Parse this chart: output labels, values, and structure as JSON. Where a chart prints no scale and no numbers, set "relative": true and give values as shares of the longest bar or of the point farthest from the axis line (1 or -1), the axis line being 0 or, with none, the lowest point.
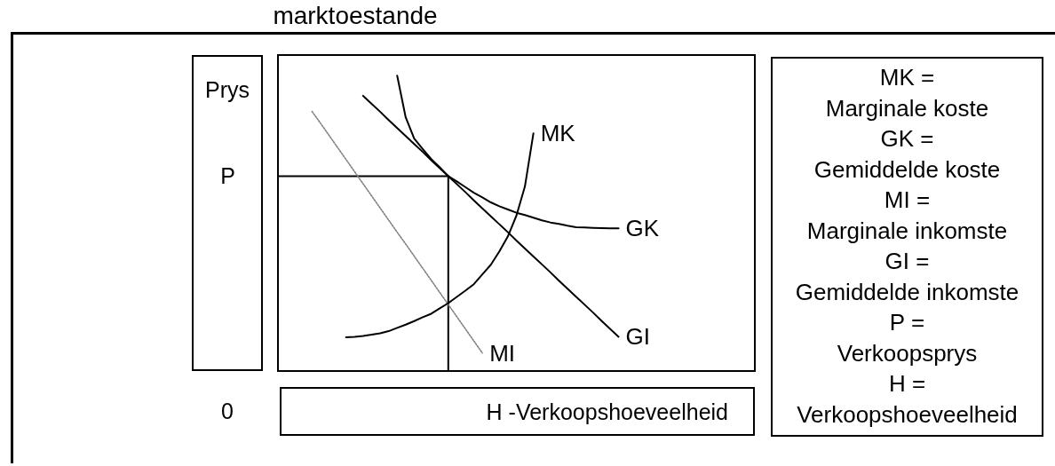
{
  "chart_data": {
    "type": "line",
    "title": "marktoestande",
    "xlabel": "H -Verkoopshoeveelheid",
    "ylabel": "Prys",
    "relative": true,
    "marker": "none",
    "categories": [
      null,
      null,
      null,
      null,
      null,
      null,
      null,
      null,
      null,
      null,
      null,
      null,
      null,
      null,
      null,
      null,
      null,
      null,
      null,
      null,
      null,
      null,
      null,
      null,
      null,
      null,
      null,
      null,
      null,
      null,
      null,
      null,
      null,
      null,
      null,
      null,
      null,
      null,
      null,
      null,
      null,
      null,
      null,
      null,
      null,
      null,
      null,
      null,
      null,
      null,
      null,
      null,
      null,
      null,
      null,
      null,
      null
    ],
    "series": [
      {
        "type": "step",
        "name": "P",
        "color": "#000000",
        "values": [
          0.66,
          0.66,
          0.66,
          0.66,
          0.66,
          0.66,
          0.66,
          0.66,
          0.66,
          0.66,
          0.66,
          0.66,
          0.66,
          0.66,
          0.66,
          0.66,
          0.66,
          0.66,
          0.66,
          0.66,
          0.66,
          0,
          null,
          null,
          null,
          null,
          null,
          null,
          null,
          null,
          null,
          null,
          null,
          null,
          null,
          null,
          null,
          null,
          null,
          null,
          null,
          null,
          null,
          null,
          null,
          null,
          null,
          null,
          null,
          null,
          null,
          null,
          null,
          null,
          null,
          null,
          null
        ]
      },
      {
        "name": "MI",
        "color": "#808080",
        "line_style": "dotted",
        "values": [
          null,
          null,
          null,
          null,
          0.879,
          0.839,
          0.798,
          0.757,
          0.716,
          0.675,
          0.634,
          0.593,
          0.552,
          0.511,
          0.47,
          0.43,
          0.389,
          0.348,
          0.307,
          0.266,
          0.225,
          0.184,
          0.143,
          0.102,
          0.061,
          null,
          null,
          null,
          null,
          null,
          null,
          null,
          null,
          null,
          null,
          null,
          null,
          null,
          null,
          null,
          null,
          null,
          null,
          null,
          null,
          null,
          null,
          null,
          null,
          null,
          null,
          null,
          null,
          null,
          null,
          null,
          null
        ]
      },
      {
        "name": "MK",
        "color": "#000000",
        "values": [
          null,
          null,
          null,
          null,
          null,
          null,
          null,
          null,
          0.114,
          0.116,
          0.119,
          0.123,
          0.128,
          0.135,
          0.146,
          0.157,
          0.169,
          0.182,
          0.194,
          0.212,
          0.23,
          0.251,
          0.272,
          0.294,
          0.327,
          0.36,
          0.405,
          0.456,
          0.526,
          0.625,
          0.805,
          null,
          null,
          null,
          null,
          null,
          null,
          null,
          null,
          null,
          null,
          null,
          null,
          null,
          null,
          null,
          null,
          null,
          null,
          null,
          null,
          null,
          null,
          null,
          null,
          null,
          null
        ]
      },
      {
        "name": "GK",
        "color": "#000000",
        "values": [
          null,
          null,
          null,
          null,
          null,
          null,
          null,
          null,
          null,
          null,
          null,
          null,
          null,
          null,
          1.0,
          0.859,
          0.787,
          0.752,
          0.718,
          0.69,
          0.66,
          0.642,
          0.623,
          0.604,
          0.588,
          0.571,
          0.558,
          0.547,
          0.536,
          0.528,
          0.519,
          0.51,
          0.503,
          0.498,
          0.492,
          0.487,
          0.486,
          0.485,
          0.484,
          0.483,
          0.483,
          null,
          null,
          null,
          null,
          null,
          null,
          null,
          null,
          null,
          null,
          null,
          null,
          null,
          null,
          null,
          null
        ]
      },
      {
        "name": "GI",
        "color": "#000000",
        "values": [
          null,
          null,
          null,
          null,
          null,
          null,
          null,
          null,
          null,
          null,
          0.932,
          0.905,
          0.878,
          0.85,
          0.823,
          0.796,
          0.769,
          0.742,
          0.714,
          0.687,
          0.66,
          0.633,
          0.606,
          0.578,
          0.551,
          0.524,
          0.497,
          0.47,
          0.442,
          0.415,
          0.388,
          0.361,
          0.334,
          0.306,
          0.279,
          0.252,
          0.225,
          0.198,
          0.17,
          0.143,
          0.116,
          null,
          null,
          null,
          null,
          null,
          null,
          null,
          null,
          null,
          null,
          null,
          null,
          null,
          null,
          null,
          null
        ]
      }
    ],
    "annotations": [
      "0",
      "MK =",
      "Marginale koste",
      "GK =",
      "Gemiddelde koste",
      "MI =",
      "Marginale inkomste",
      "GI =",
      "Gemiddelde inkomste",
      "P =",
      "Verkoopsprys",
      "H =",
      "Verkoopshoeveelheid"
    ]
  }
}
